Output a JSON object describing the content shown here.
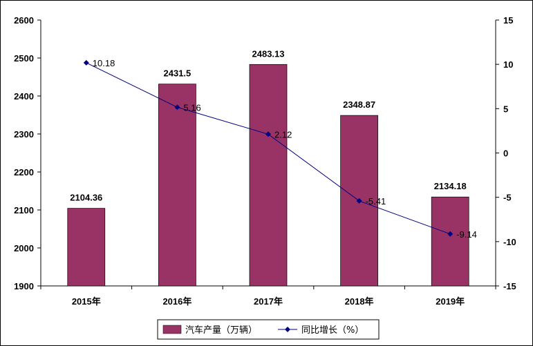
{
  "chart_data": {
    "type": "bar",
    "categories": [
      "2015年",
      "2016年",
      "2017年",
      "2018年",
      "2019年"
    ],
    "series": [
      {
        "name": "汽车产量（万辆）",
        "type": "bar",
        "axis": "left",
        "values": [
          2104.36,
          2431.5,
          2483.13,
          2348.87,
          2134.18
        ],
        "labels": [
          "2104.36",
          "2431.5",
          "2483.13",
          "2348.87",
          "2134.18"
        ],
        "color": "#993366"
      },
      {
        "name": "同比增长（%）",
        "type": "line",
        "axis": "right",
        "values": [
          10.18,
          5.16,
          2.12,
          -5.41,
          -9.14
        ],
        "labels": [
          "10.18",
          "5.16",
          "2.12",
          "-5.41",
          "-9.14"
        ],
        "color": "#000080"
      }
    ],
    "y_left": {
      "min": 1900,
      "max": 2600,
      "ticks": [
        "1900",
        "2000",
        "2100",
        "2200",
        "2300",
        "2400",
        "2500",
        "2600"
      ]
    },
    "y_right": {
      "min": -15,
      "max": 15,
      "ticks": [
        "-15",
        "-10",
        "-5",
        "0",
        "5",
        "10",
        "15"
      ]
    },
    "grid": false,
    "legend_position": "bottom"
  }
}
